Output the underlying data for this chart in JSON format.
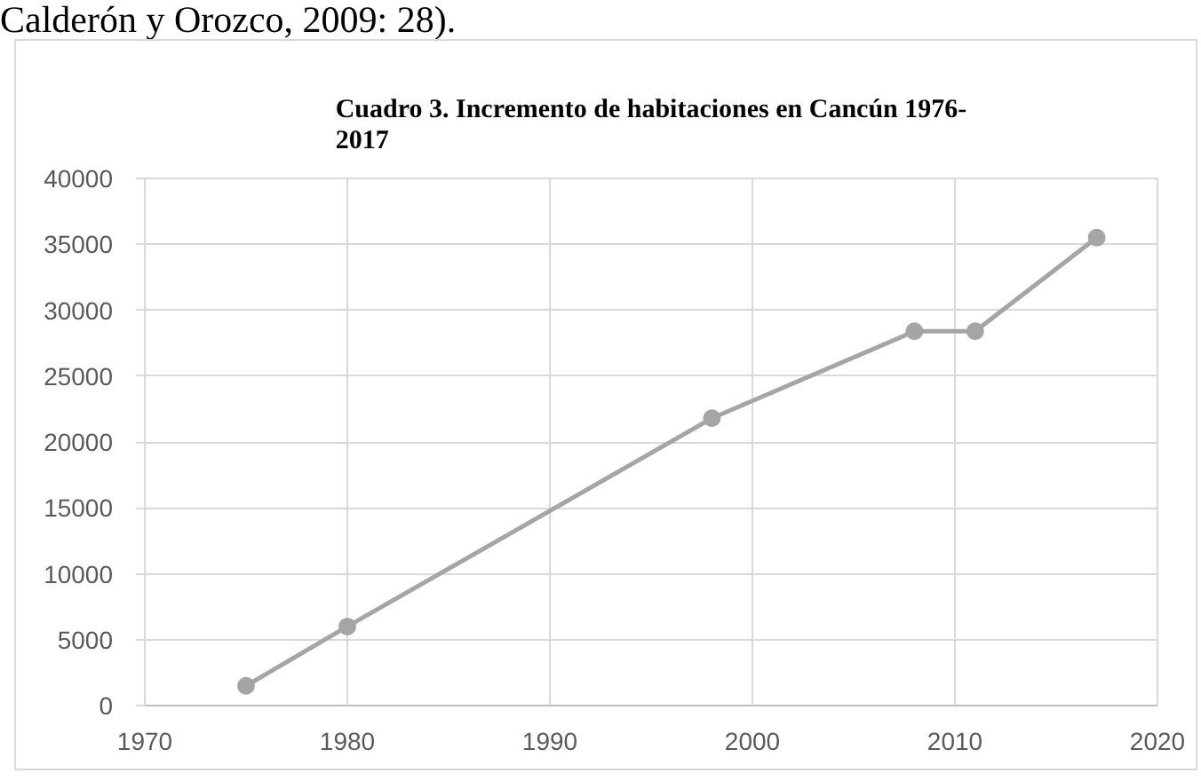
{
  "chart_data": {
    "type": "line",
    "title": "Cuadro 3. Incremento de habitaciones en Cancún 1976-2017",
    "annotations": [
      "Calderón y Orozco, 2009: 28)."
    ],
    "x": [
      1975,
      1980,
      1998,
      2008,
      2011,
      2017
    ],
    "values": [
      1500,
      6000,
      21800,
      28400,
      28400,
      35500
    ],
    "color": "#a5a5a5",
    "xlim": [
      1970,
      2020
    ],
    "xticks": [
      1970,
      1980,
      1990,
      2000,
      2010,
      2020
    ],
    "ylim": [
      0,
      40000
    ],
    "yticks": [
      0,
      5000,
      10000,
      15000,
      20000,
      25000,
      30000,
      35000,
      40000
    ],
    "grid": true,
    "marker": "circle",
    "line_style": "solid"
  }
}
